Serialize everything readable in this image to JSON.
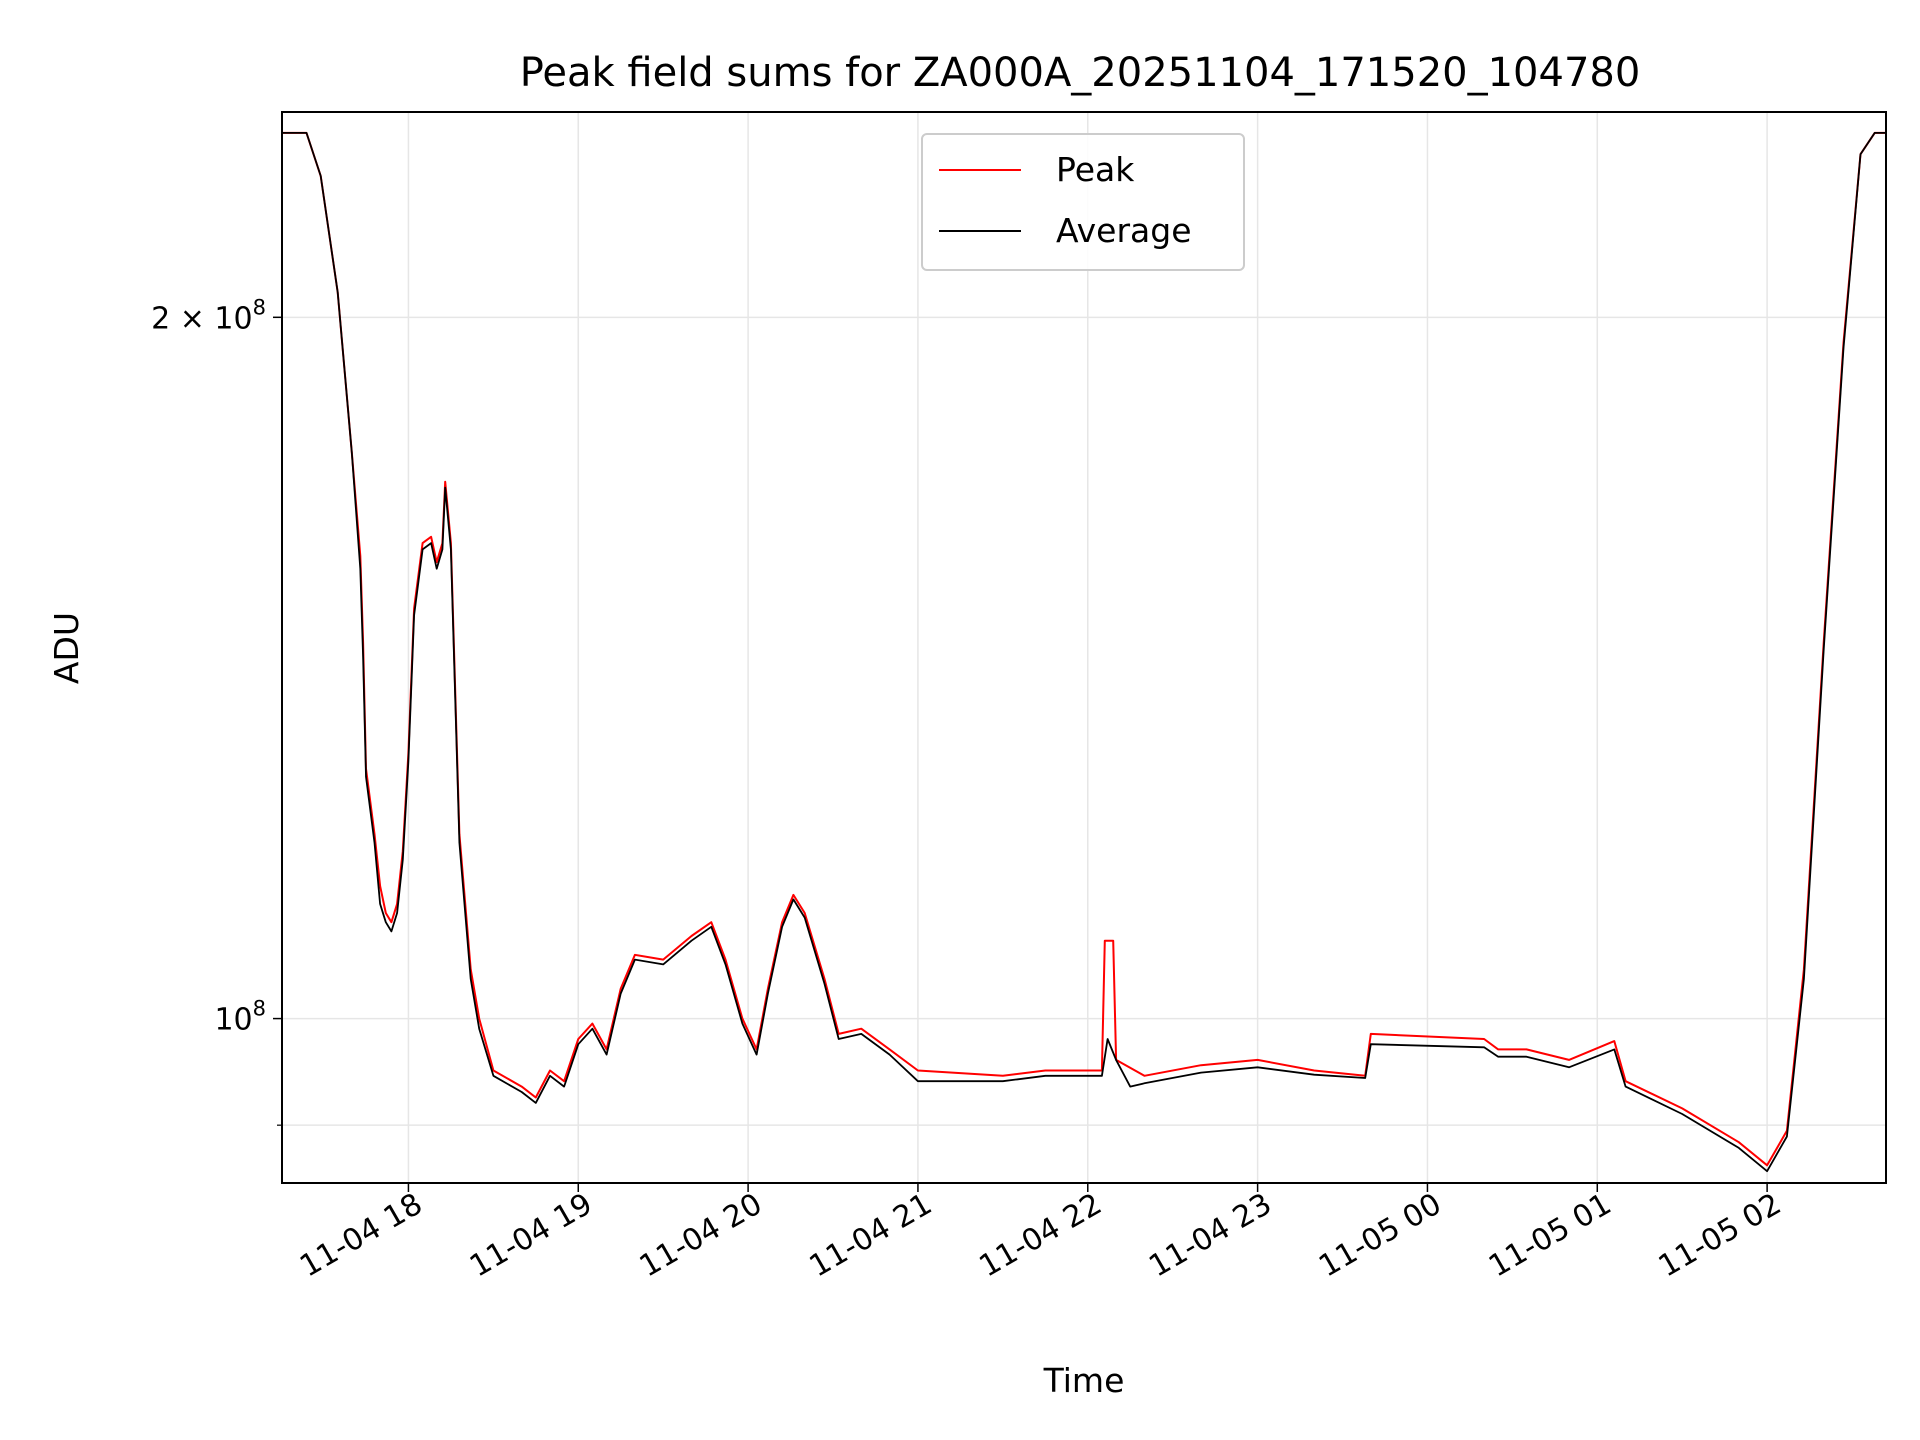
{
  "chart_data": {
    "type": "line",
    "title": "Peak field sums for ZA000A_20251104_171520_104780",
    "xlabel": "Time",
    "ylabel": "ADU",
    "y_scale": "log",
    "ylim": [
      85000000,
      245000000
    ],
    "xlim": [
      "2025-11-04T17:15:20",
      "2025-11-05T02:42:00"
    ],
    "grid": true,
    "legend_position": "top-center",
    "x_ticks": [
      "11-04 18",
      "11-04 19",
      "11-04 20",
      "11-04 21",
      "11-04 22",
      "11-04 23",
      "11-05 00",
      "11-05 01",
      "11-05 02"
    ],
    "y_ticks": [
      {
        "value": 200000000,
        "base": "2 × 10",
        "exp": "8"
      },
      {
        "value": 100000000,
        "base": "10",
        "exp": "8"
      }
    ],
    "series": [
      {
        "name": "Peak",
        "color": "#ff0000",
        "points": [
          [
            "2025-11-04T17:15:20",
            240000000
          ],
          [
            "2025-11-04T17:24",
            240000000
          ],
          [
            "2025-11-04T17:29",
            230000000
          ],
          [
            "2025-11-04T17:35",
            205000000
          ],
          [
            "2025-11-04T17:40",
            175000000
          ],
          [
            "2025-11-04T17:43",
            158000000
          ],
          [
            "2025-11-04T17:44",
            145000000
          ],
          [
            "2025-11-04T17:45",
            128000000
          ],
          [
            "2025-11-04T17:48",
            120000000
          ],
          [
            "2025-11-04T17:50",
            114000000
          ],
          [
            "2025-11-04T17:52",
            111000000
          ],
          [
            "2025-11-04T17:54",
            110000000
          ],
          [
            "2025-11-04T17:56",
            112000000
          ],
          [
            "2025-11-04T17:58",
            118000000
          ],
          [
            "2025-11-04T18:00",
            130000000
          ],
          [
            "2025-11-04T18:02",
            150000000
          ],
          [
            "2025-11-04T18:05",
            160000000
          ],
          [
            "2025-11-04T18:08",
            161000000
          ],
          [
            "2025-11-04T18:10",
            157000000
          ],
          [
            "2025-11-04T18:12",
            160000000
          ],
          [
            "2025-11-04T18:13",
            170000000
          ],
          [
            "2025-11-04T18:15",
            160000000
          ],
          [
            "2025-11-04T18:18",
            120000000
          ],
          [
            "2025-11-04T18:22",
            105000000
          ],
          [
            "2025-11-04T18:25",
            100000000
          ],
          [
            "2025-11-04T18:30",
            95000000
          ],
          [
            "2025-11-04T18:40",
            93500000
          ],
          [
            "2025-11-04T18:45",
            92500000
          ],
          [
            "2025-11-04T18:50",
            95000000
          ],
          [
            "2025-11-04T18:55",
            94000000
          ],
          [
            "2025-11-04T19:00",
            98000000
          ],
          [
            "2025-11-04T19:05",
            99500000
          ],
          [
            "2025-11-04T19:10",
            97000000
          ],
          [
            "2025-11-04T19:15",
            103000000
          ],
          [
            "2025-11-04T19:20",
            106500000
          ],
          [
            "2025-11-04T19:30",
            106000000
          ],
          [
            "2025-11-04T19:40",
            108500000
          ],
          [
            "2025-11-04T19:47",
            110000000
          ],
          [
            "2025-11-04T19:52",
            106000000
          ],
          [
            "2025-11-04T19:58",
            100000000
          ],
          [
            "2025-11-04T20:03",
            97000000
          ],
          [
            "2025-11-04T20:07",
            103000000
          ],
          [
            "2025-11-04T20:12",
            110000000
          ],
          [
            "2025-11-04T20:16",
            113000000
          ],
          [
            "2025-11-04T20:20",
            111000000
          ],
          [
            "2025-11-04T20:27",
            104000000
          ],
          [
            "2025-11-04T20:32",
            98500000
          ],
          [
            "2025-11-04T20:40",
            99000000
          ],
          [
            "2025-11-04T20:50",
            97000000
          ],
          [
            "2025-11-04T21:00",
            95000000
          ],
          [
            "2025-11-04T21:30",
            94500000
          ],
          [
            "2025-11-04T21:45",
            95000000
          ],
          [
            "2025-11-04T22:05",
            95000000
          ],
          [
            "2025-11-04T22:06",
            108000000
          ],
          [
            "2025-11-04T22:09",
            108000000
          ],
          [
            "2025-11-04T22:10",
            96000000
          ],
          [
            "2025-11-04T22:20",
            94500000
          ],
          [
            "2025-11-04T22:40",
            95500000
          ],
          [
            "2025-11-04T23:00",
            96000000
          ],
          [
            "2025-11-04T23:20",
            95000000
          ],
          [
            "2025-11-04T23:38",
            94500000
          ],
          [
            "2025-11-04T23:40",
            98500000
          ],
          [
            "2025-11-05T00:20",
            98000000
          ],
          [
            "2025-11-05T00:25",
            97000000
          ],
          [
            "2025-11-05T00:35",
            97000000
          ],
          [
            "2025-11-05T00:50",
            96000000
          ],
          [
            "2025-11-05T01:06",
            97800000
          ],
          [
            "2025-11-05T01:10",
            94000000
          ],
          [
            "2025-11-05T01:30",
            91500000
          ],
          [
            "2025-11-05T01:50",
            88500000
          ],
          [
            "2025-11-05T02:00",
            86500000
          ],
          [
            "2025-11-05T02:07",
            89500000
          ],
          [
            "2025-11-05T02:13",
            105000000
          ],
          [
            "2025-11-05T02:20",
            145000000
          ],
          [
            "2025-11-05T02:27",
            195000000
          ],
          [
            "2025-11-05T02:33",
            235000000
          ],
          [
            "2025-11-05T02:38",
            240000000
          ],
          [
            "2025-11-05T02:42",
            240000000
          ]
        ]
      },
      {
        "name": "Average",
        "color": "#000000",
        "points": [
          [
            "2025-11-04T17:15:20",
            240000000
          ],
          [
            "2025-11-04T17:24",
            240000000
          ],
          [
            "2025-11-04T17:29",
            230000000
          ],
          [
            "2025-11-04T17:35",
            205000000
          ],
          [
            "2025-11-04T17:40",
            175000000
          ],
          [
            "2025-11-04T17:43",
            156000000
          ],
          [
            "2025-11-04T17:44",
            143000000
          ],
          [
            "2025-11-04T17:45",
            127000000
          ],
          [
            "2025-11-04T17:48",
            119000000
          ],
          [
            "2025-11-04T17:50",
            112000000
          ],
          [
            "2025-11-04T17:52",
            110000000
          ],
          [
            "2025-11-04T17:54",
            109000000
          ],
          [
            "2025-11-04T17:56",
            111000000
          ],
          [
            "2025-11-04T17:58",
            117000000
          ],
          [
            "2025-11-04T18:00",
            129000000
          ],
          [
            "2025-11-04T18:02",
            149000000
          ],
          [
            "2025-11-04T18:05",
            159000000
          ],
          [
            "2025-11-04T18:08",
            160000000
          ],
          [
            "2025-11-04T18:10",
            156000000
          ],
          [
            "2025-11-04T18:12",
            159000000
          ],
          [
            "2025-11-04T18:13",
            169000000
          ],
          [
            "2025-11-04T18:15",
            159000000
          ],
          [
            "2025-11-04T18:18",
            119000000
          ],
          [
            "2025-11-04T18:22",
            104000000
          ],
          [
            "2025-11-04T18:25",
            99000000
          ],
          [
            "2025-11-04T18:30",
            94500000
          ],
          [
            "2025-11-04T18:40",
            93000000
          ],
          [
            "2025-11-04T18:45",
            92000000
          ],
          [
            "2025-11-04T18:50",
            94500000
          ],
          [
            "2025-11-04T18:55",
            93500000
          ],
          [
            "2025-11-04T19:00",
            97500000
          ],
          [
            "2025-11-04T19:05",
            99000000
          ],
          [
            "2025-11-04T19:10",
            96500000
          ],
          [
            "2025-11-04T19:15",
            102500000
          ],
          [
            "2025-11-04T19:20",
            106000000
          ],
          [
            "2025-11-04T19:30",
            105500000
          ],
          [
            "2025-11-04T19:40",
            108000000
          ],
          [
            "2025-11-04T19:47",
            109500000
          ],
          [
            "2025-11-04T19:52",
            105500000
          ],
          [
            "2025-11-04T19:58",
            99500000
          ],
          [
            "2025-11-04T20:03",
            96500000
          ],
          [
            "2025-11-04T20:07",
            102500000
          ],
          [
            "2025-11-04T20:12",
            109500000
          ],
          [
            "2025-11-04T20:16",
            112500000
          ],
          [
            "2025-11-04T20:20",
            110500000
          ],
          [
            "2025-11-04T20:27",
            103500000
          ],
          [
            "2025-11-04T20:32",
            98000000
          ],
          [
            "2025-11-04T20:40",
            98500000
          ],
          [
            "2025-11-04T20:50",
            96500000
          ],
          [
            "2025-11-04T21:00",
            94000000
          ],
          [
            "2025-11-04T21:30",
            94000000
          ],
          [
            "2025-11-04T21:45",
            94500000
          ],
          [
            "2025-11-04T22:05",
            94500000
          ],
          [
            "2025-11-04T22:07",
            98000000
          ],
          [
            "2025-11-04T22:10",
            96000000
          ],
          [
            "2025-11-04T22:15",
            93500000
          ],
          [
            "2025-11-04T22:20",
            93800000
          ],
          [
            "2025-11-04T22:40",
            94800000
          ],
          [
            "2025-11-04T23:00",
            95300000
          ],
          [
            "2025-11-04T23:20",
            94600000
          ],
          [
            "2025-11-04T23:38",
            94300000
          ],
          [
            "2025-11-04T23:40",
            97500000
          ],
          [
            "2025-11-05T00:20",
            97200000
          ],
          [
            "2025-11-05T00:25",
            96300000
          ],
          [
            "2025-11-05T00:35",
            96300000
          ],
          [
            "2025-11-05T00:50",
            95300000
          ],
          [
            "2025-11-05T01:06",
            97000000
          ],
          [
            "2025-11-05T01:10",
            93500000
          ],
          [
            "2025-11-05T01:30",
            91000000
          ],
          [
            "2025-11-05T01:50",
            88000000
          ],
          [
            "2025-11-05T02:00",
            86000000
          ],
          [
            "2025-11-05T02:07",
            89000000
          ],
          [
            "2025-11-05T02:13",
            104000000
          ],
          [
            "2025-11-05T02:20",
            144000000
          ],
          [
            "2025-11-05T02:27",
            194000000
          ],
          [
            "2025-11-05T02:33",
            235000000
          ],
          [
            "2025-11-05T02:38",
            240000000
          ],
          [
            "2025-11-05T02:42",
            240000000
          ]
        ]
      }
    ]
  }
}
